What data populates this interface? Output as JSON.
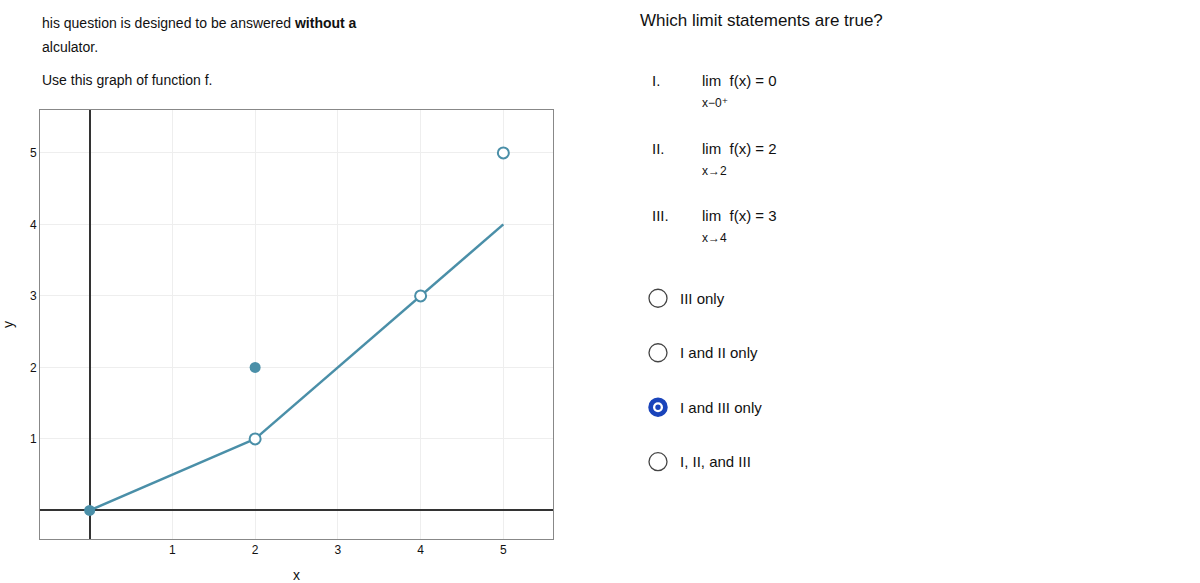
{
  "chart_data": {
    "type": "line",
    "title": "Which limit statements are true?",
    "header": [
      "his question is designed to be answered ",
      "without a",
      "alculator."
    ],
    "subtitle": "Use this graph of function f.",
    "xlabel": "x",
    "ylabel": "y",
    "series": [
      {
        "type": "line",
        "color": "#4a8fa8",
        "x": [
          0,
          2
        ],
        "values": [
          0,
          1
        ]
      },
      {
        "type": "line",
        "color": "#4a8fa8",
        "x": [
          2,
          5
        ],
        "values": [
          1,
          4
        ]
      },
      {
        "type": "scatter",
        "marker": "filled",
        "color": "#4a8fa8",
        "x": [
          0,
          2
        ],
        "values": [
          0,
          2
        ]
      },
      {
        "type": "scatter",
        "marker": "open",
        "color": "#4a8fa8",
        "x": [
          2,
          4,
          5
        ],
        "values": [
          1,
          3,
          5
        ]
      }
    ],
    "xlim": [
      -0.6,
      5.6
    ],
    "xticks": [
      1,
      2,
      3,
      4,
      5
    ],
    "ylim": [
      -0.4,
      5.6
    ],
    "yticks": [
      1,
      2,
      3,
      4,
      5
    ],
    "grid": true,
    "statements": [
      {
        "numeral": "I.",
        "expr": "lim  f(x) = 0",
        "sub": "x−0⁺"
      },
      {
        "numeral": "II.",
        "expr": "lim  f(x) = 2",
        "sub": "x→2"
      },
      {
        "numeral": "III.",
        "expr": "lim  f(x) = 3",
        "sub": "x→4"
      }
    ],
    "choices": [
      "III only",
      "I and II only",
      "I and III only",
      "I, II, and III"
    ],
    "selected_index": 2,
    "selected_color": "#1a44bb"
  }
}
